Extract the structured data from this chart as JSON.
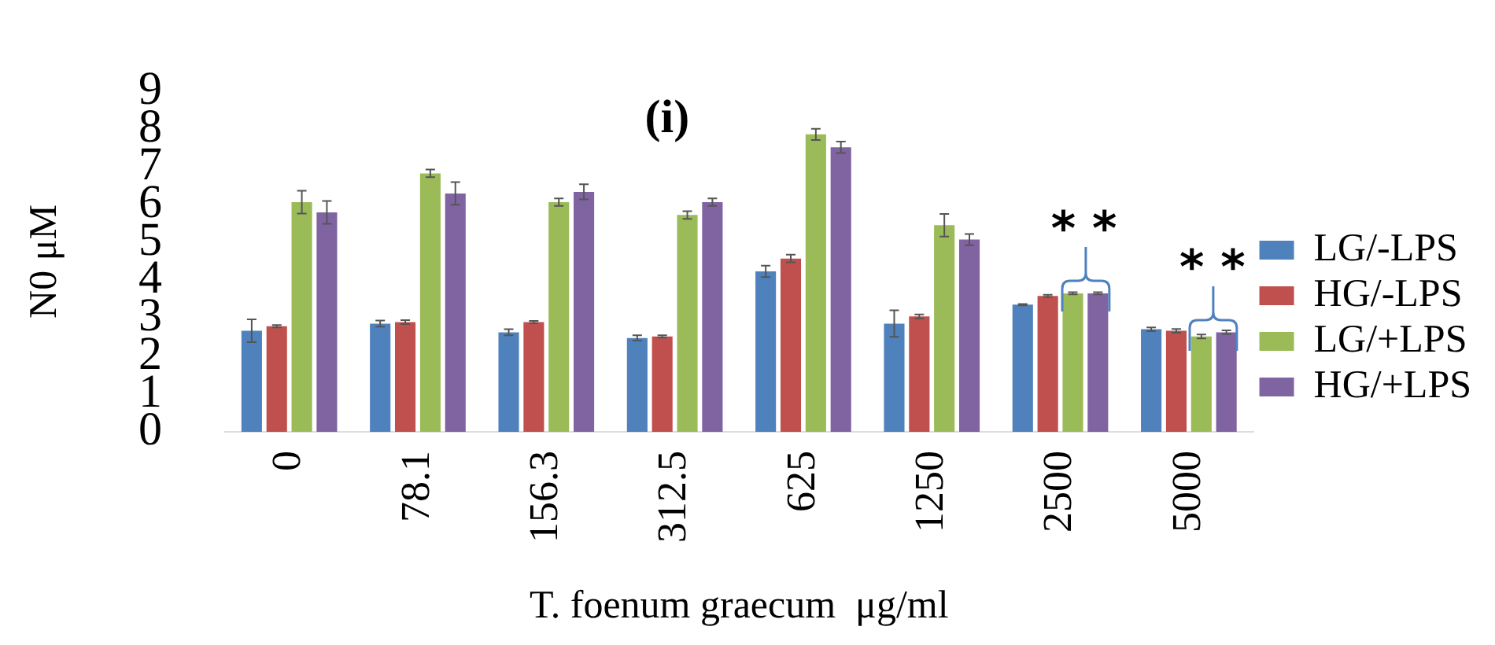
{
  "chart_data": {
    "type": "bar",
    "xlabel": "T. foenum graecum  μg/ml",
    "ylabel": "N0 μM",
    "categories": [
      "0",
      "78.1",
      "156.3",
      "312.5",
      "625",
      "1250",
      "2500",
      "5000"
    ],
    "ylim": [
      0,
      9
    ],
    "yticks": [
      0,
      1,
      2,
      3,
      4,
      5,
      6,
      7,
      8,
      9
    ],
    "grid": false,
    "legend": "right",
    "series": [
      {
        "name": "LG/-LPS",
        "color": "#4f81bd",
        "values": [
          2.67,
          2.86,
          2.63,
          2.48,
          4.24,
          2.86,
          3.36,
          2.71
        ],
        "errors": [
          0.3,
          0.08,
          0.08,
          0.07,
          0.15,
          0.35,
          0.02,
          0.05
        ]
      },
      {
        "name": "HG/-LPS",
        "color": "#c0504d",
        "values": [
          2.79,
          2.9,
          2.9,
          2.52,
          4.58,
          3.05,
          3.59,
          2.67
        ],
        "errors": [
          0.03,
          0.05,
          0.03,
          0.03,
          0.1,
          0.05,
          0.03,
          0.05
        ]
      },
      {
        "name": "LG/+LPS",
        "color": "#9bbb59",
        "values": [
          6.07,
          6.83,
          6.07,
          5.73,
          7.86,
          5.46,
          3.66,
          2.52
        ],
        "errors": [
          0.3,
          0.1,
          0.1,
          0.1,
          0.15,
          0.3,
          0.03,
          0.05
        ]
      },
      {
        "name": "HG/+LPS",
        "color": "#8064a2",
        "values": [
          5.8,
          6.3,
          6.34,
          6.07,
          7.52,
          5.08,
          3.66,
          2.63
        ],
        "errors": [
          0.3,
          0.3,
          0.2,
          0.1,
          0.15,
          0.15,
          0.03,
          0.05
        ]
      }
    ],
    "annotations": [
      "(i)",
      "* *",
      "* *"
    ]
  }
}
